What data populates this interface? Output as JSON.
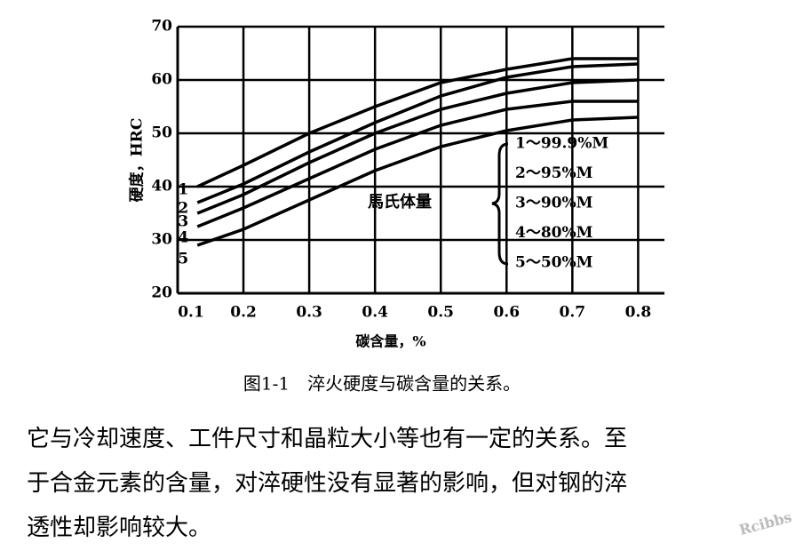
{
  "chart_data": {
    "type": "line",
    "x_label": "碳含量，%",
    "y_label": "硬度，HRC",
    "x": [
      0.13,
      0.2,
      0.3,
      0.4,
      0.5,
      0.6,
      0.7,
      0.8
    ],
    "series": [
      {
        "name": "1",
        "color": "#000000",
        "values": [
          40,
          44,
          50,
          55,
          59.5,
          62,
          64,
          64
        ]
      },
      {
        "name": "2",
        "color": "#000000",
        "values": [
          37,
          40.5,
          46.5,
          52,
          57,
          60.5,
          62.5,
          63
        ]
      },
      {
        "name": "3",
        "color": "#000000",
        "values": [
          35,
          38.5,
          44.5,
          50,
          54.5,
          57.5,
          59.5,
          60
        ]
      },
      {
        "name": "4",
        "color": "#000000",
        "values": [
          32.5,
          36,
          41.5,
          47,
          51.5,
          54.5,
          56,
          56
        ]
      },
      {
        "name": "5",
        "color": "#000000",
        "values": [
          29,
          32,
          37.5,
          43,
          47.5,
          50.5,
          52.5,
          53
        ]
      }
    ],
    "legend_title": "馬氏体量",
    "legend_labels": [
      "1～99.9%M",
      "2～95%M",
      "3～90%M",
      "4～80%M",
      "5～50%M"
    ],
    "xlim": [
      0.1,
      0.84
    ],
    "ylim": [
      20,
      70
    ],
    "xticks": [
      0.1,
      0.2,
      0.3,
      0.4,
      0.5,
      0.6,
      0.7,
      0.8
    ],
    "yticks": [
      20,
      30,
      40,
      50,
      60,
      70
    ],
    "grid": true
  },
  "caption": "图1-1　淬火硬度与碳含量的关系。",
  "paragraph": [
    "它与冷却速度、工件尺寸和晶粒大小等也有一定的关系。至",
    "于合金元素的含量，对淬硬性没有显著的影响，但对钢的淬",
    "透性却影响较大。"
  ],
  "watermark": "Rcibbs"
}
